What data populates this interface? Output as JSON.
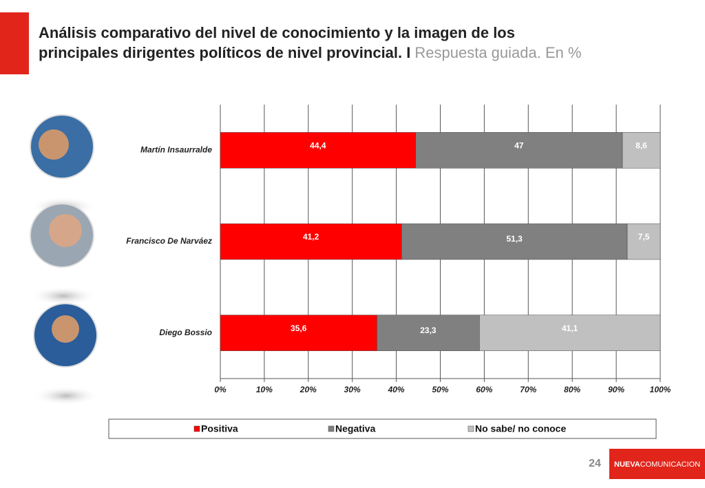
{
  "slide": {
    "page": "24",
    "logo_bold": "NUEVA",
    "logo_light": "COMUNICACION"
  },
  "chart_data": {
    "type": "stacked-bar-horizontal",
    "title": "Análisis comparativo del nivel de conocimiento y la imagen de los principales dirigentes políticos de nivel provincial. I",
    "subtitle": "Respuesta guiada. En %",
    "categories": [
      "Martín Insaurralde",
      "Francisco De Narváez",
      "Diego Bossio"
    ],
    "series": [
      {
        "name": "Positiva",
        "color": "#ff0000",
        "values": [
          44.4,
          41.2,
          35.6
        ],
        "value_labels": [
          "44,4",
          "41,2",
          "35,6"
        ]
      },
      {
        "name": "Negativa",
        "color": "#808080",
        "values": [
          47,
          51.3,
          23.3
        ],
        "value_labels": [
          "47",
          "51,3",
          "23,3"
        ]
      },
      {
        "name": "No sabe/ no conoce",
        "color": "#c0c0c0",
        "values": [
          8.6,
          7.5,
          41.1
        ],
        "value_labels": [
          "8,6",
          "7,5",
          "41,1"
        ]
      }
    ],
    "xlim": [
      0,
      100
    ],
    "xticks": [
      {
        "value": 0,
        "label": "0%"
      },
      {
        "value": 10,
        "label": "10%"
      },
      {
        "value": 20,
        "label": "20%"
      },
      {
        "value": 30,
        "label": "30%"
      },
      {
        "value": 40,
        "label": "40%"
      },
      {
        "value": 50,
        "label": "50%"
      },
      {
        "value": 60,
        "label": "60%"
      },
      {
        "value": 70,
        "label": "70%"
      },
      {
        "value": 80,
        "label": "80%"
      },
      {
        "value": 90,
        "label": "90%"
      },
      {
        "value": 100,
        "label": "100%"
      }
    ],
    "grid": true,
    "legend": "bottom"
  }
}
